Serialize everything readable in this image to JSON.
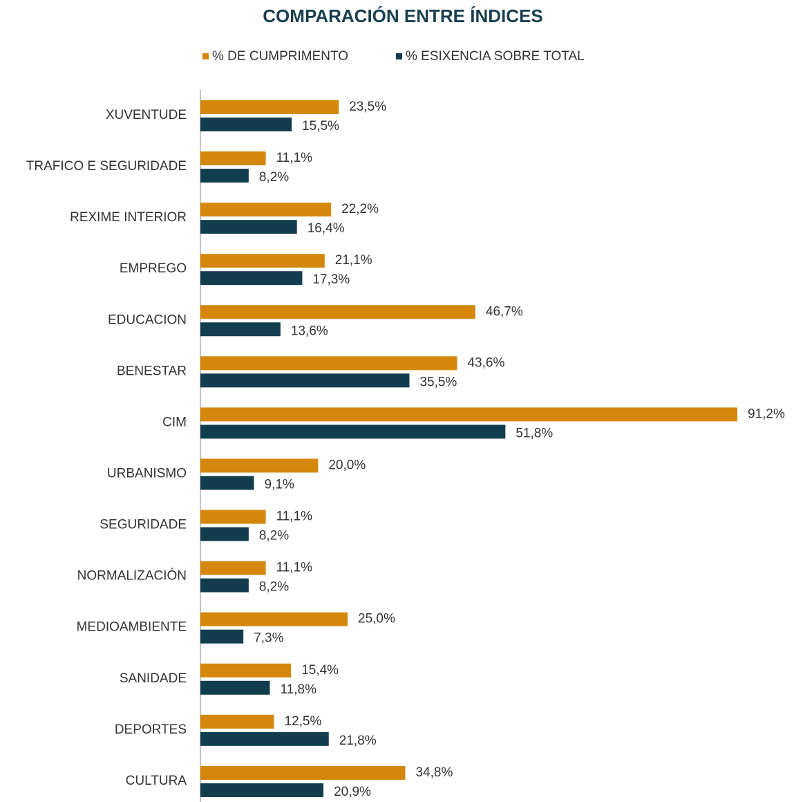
{
  "chart_data": {
    "type": "barh",
    "title": "COMPARACIÓN ENTRE ÍNDICES",
    "categories": [
      "XUVENTUDE",
      "TRAFICO E SEGURIDADE",
      "REXIME INTERIOR",
      "EMPREGO",
      "EDUCACION",
      "BENESTAR",
      "CIM",
      "URBANISMO",
      "SEGURIDADE",
      "NORMALIZACIÓN",
      "MEDIOAMBIENTE",
      "SANIDADE",
      "DEPORTES",
      "CULTURA"
    ],
    "series": [
      {
        "name": "% DE CUMPRIMENTO",
        "color": "#d4870a",
        "values": [
          23.5,
          11.1,
          22.2,
          21.1,
          46.7,
          43.6,
          91.2,
          20.0,
          11.1,
          11.1,
          25.0,
          15.4,
          12.5,
          34.8
        ],
        "value_labels": [
          "23,5%",
          "11,1%",
          "22,2%",
          "21,1%",
          "46,7%",
          "43,6%",
          "91,2%",
          "20,0%",
          "11,1%",
          "11,1%",
          "25,0%",
          "15,4%",
          "12,5%",
          "34,8%"
        ]
      },
      {
        "name": "% ESIXENCIA SOBRE TOTAL",
        "color": "#123d4f",
        "values": [
          15.5,
          8.2,
          16.4,
          17.3,
          13.6,
          35.5,
          51.8,
          9.1,
          8.2,
          8.2,
          7.3,
          11.8,
          21.8,
          20.9
        ],
        "value_labels": [
          "15,5%",
          "8,2%",
          "16,4%",
          "17,3%",
          "13,6%",
          "35,5%",
          "51,8%",
          "9,1%",
          "8,2%",
          "8,2%",
          "7,3%",
          "11,8%",
          "21,8%",
          "20,9%"
        ]
      }
    ],
    "xlim": [
      0,
      100
    ],
    "legend": "top"
  }
}
